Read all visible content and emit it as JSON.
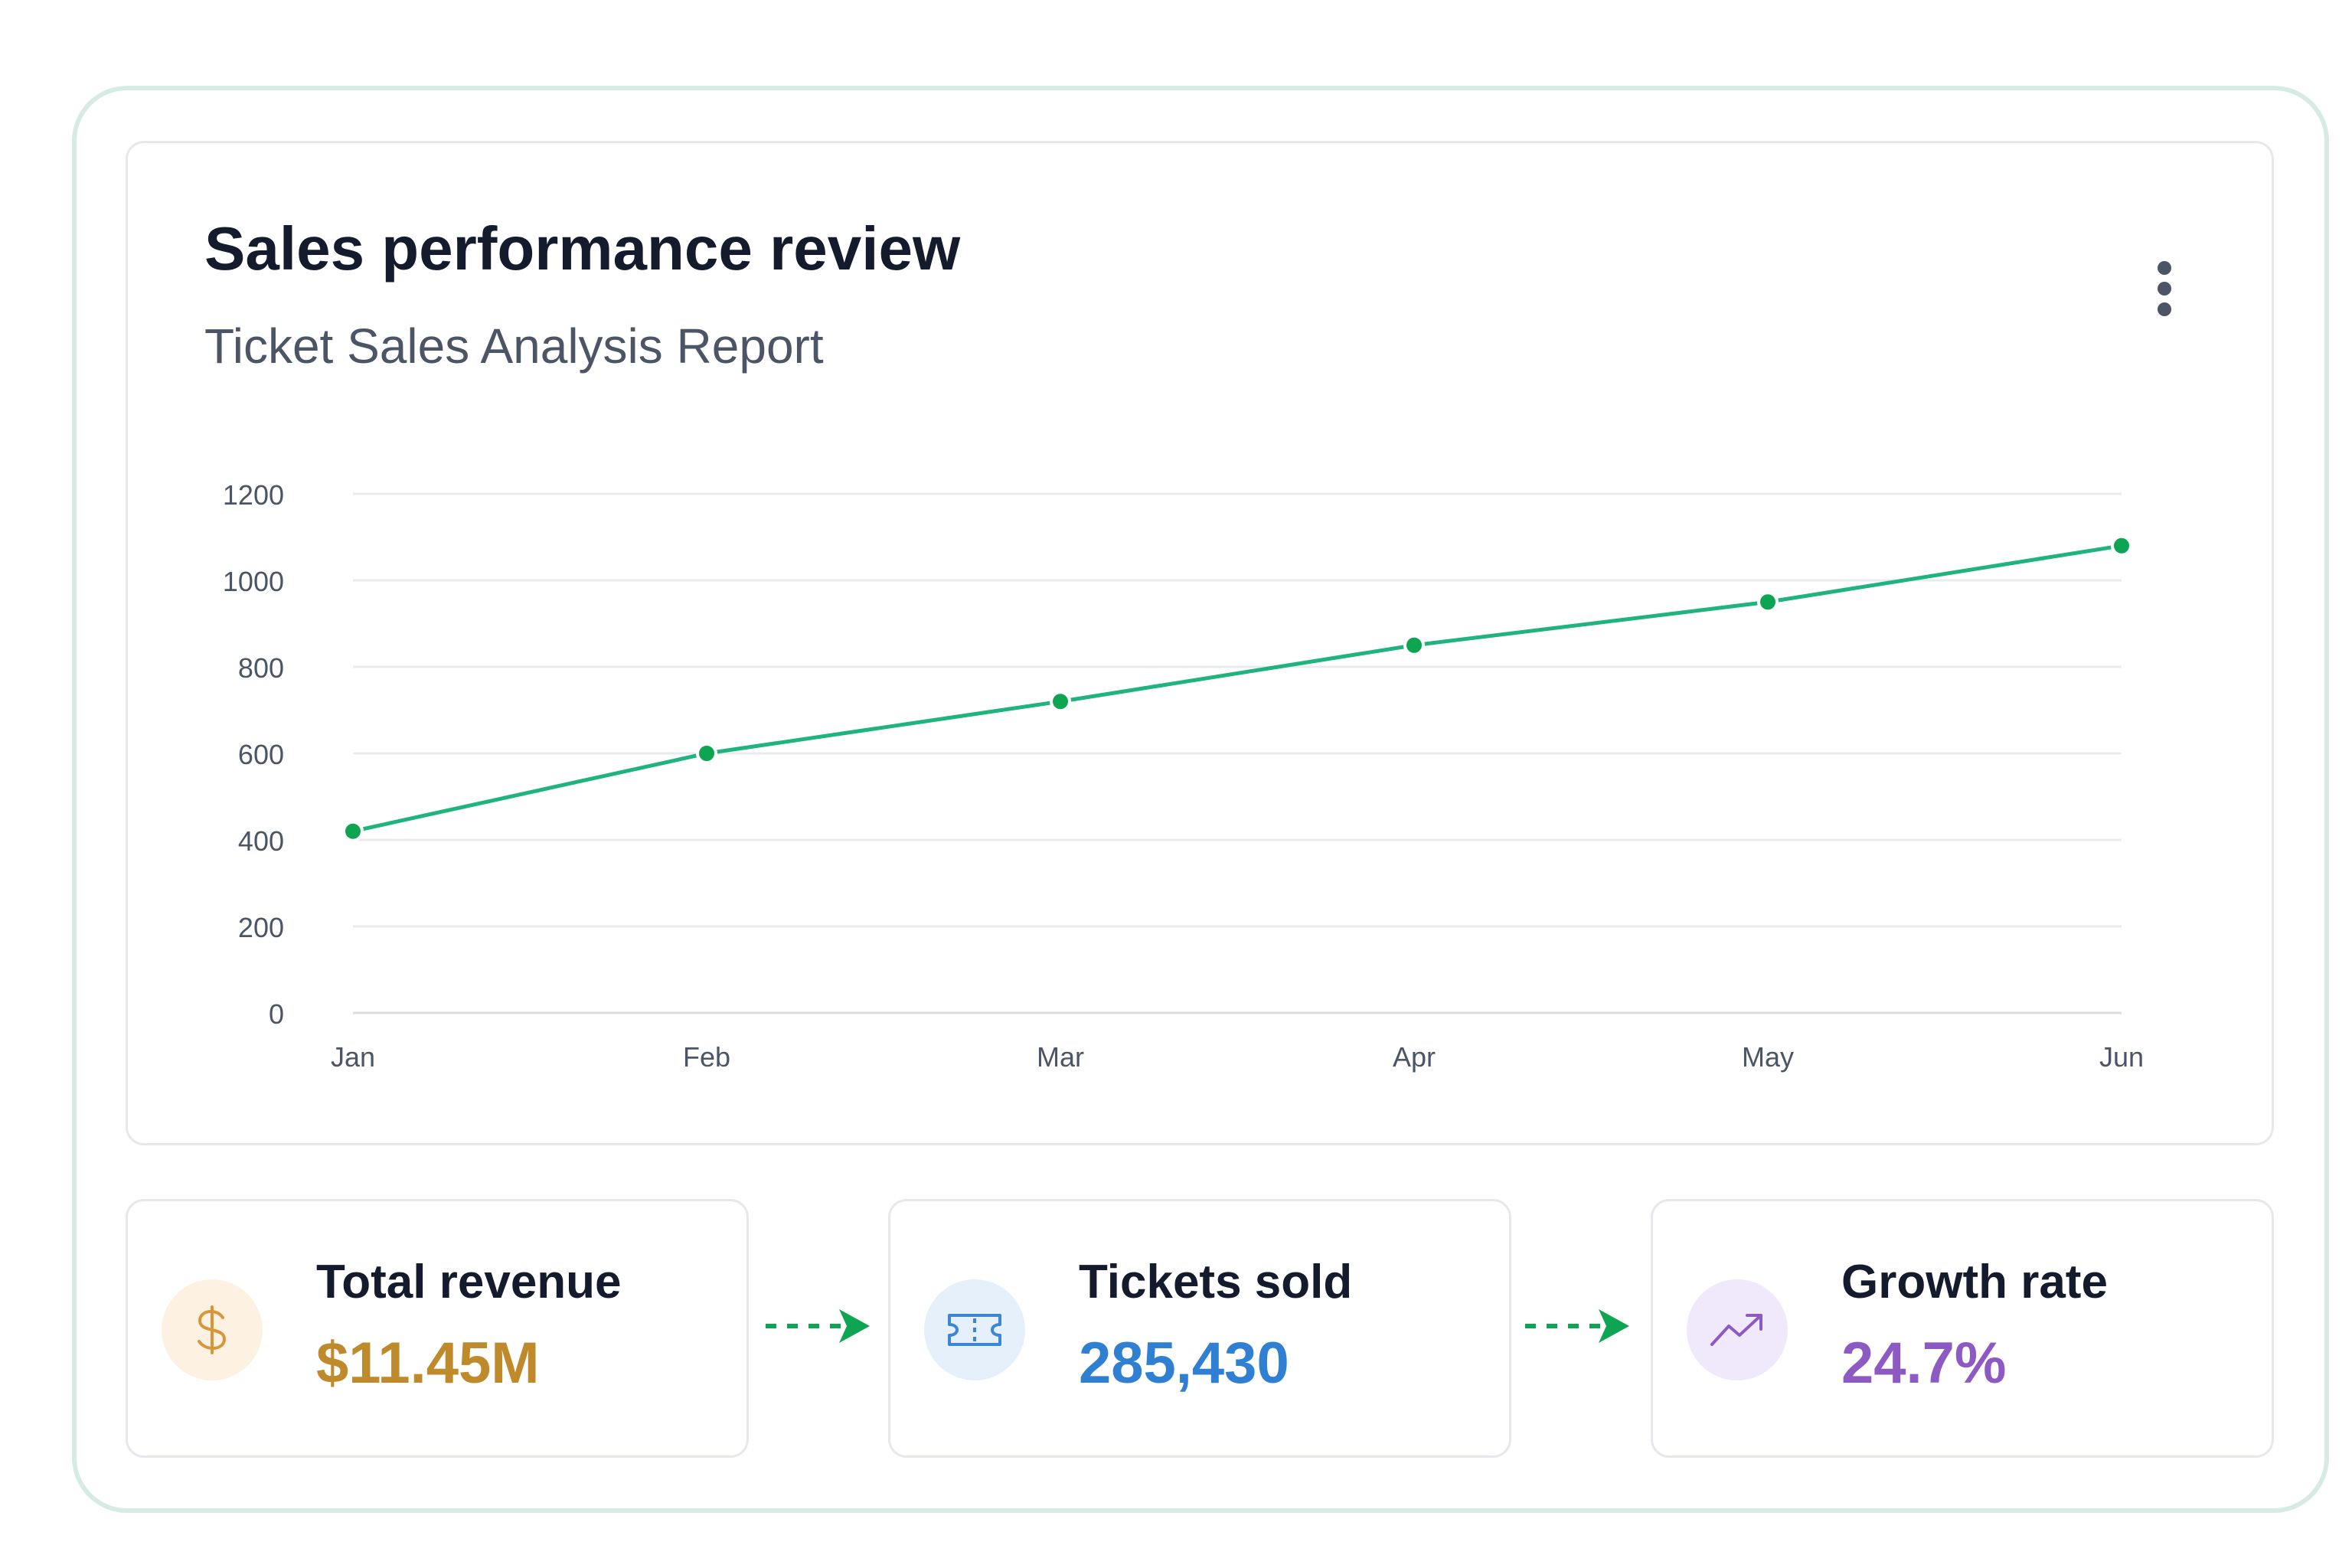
{
  "header": {
    "title": "Sales performance review",
    "subtitle": "Ticket Sales Analysis Report"
  },
  "chart_data": {
    "type": "line",
    "categories": [
      "Jan",
      "Feb",
      "Mar",
      "Apr",
      "May",
      "Jun"
    ],
    "series": [
      {
        "values": [
          420,
          600,
          720,
          850,
          950,
          1080
        ]
      }
    ],
    "yticks": [
      "0",
      "200",
      "400",
      "600",
      "800",
      "1000",
      "1200"
    ],
    "ylim": [
      0,
      1200
    ],
    "grid": true,
    "line_color": "#1fb37e",
    "point_color": "#0ea552",
    "title": "",
    "xlabel": "",
    "ylabel": ""
  },
  "stats": [
    {
      "label": "Total revenue",
      "value": "$11.45M",
      "icon": "dollar-icon",
      "color": "#be8a2c",
      "icon_bg": "#fdf1e2"
    },
    {
      "label": "Tickets sold",
      "value": "285,430",
      "icon": "ticket-icon",
      "color": "#2f7fd2",
      "icon_bg": "#e6f0fb"
    },
    {
      "label": "Growth rate",
      "value": "24.7%",
      "icon": "trending-up-icon",
      "color": "#8d5ac4",
      "icon_bg": "#f0e8fb"
    }
  ],
  "colors": {
    "frame_border": "#d6ebe3",
    "card_border": "#e6e8ec",
    "arrow": "#0ea552"
  }
}
